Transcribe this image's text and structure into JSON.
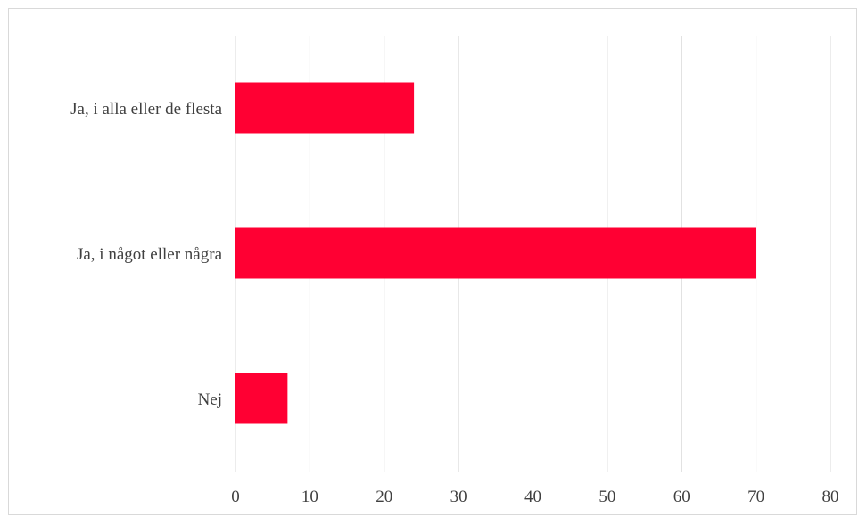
{
  "chart_data": {
    "type": "bar",
    "orientation": "horizontal",
    "categories": [
      "Ja, i alla eller de flesta",
      "Ja, i något eller några",
      "Nej"
    ],
    "values": [
      24,
      70,
      7
    ],
    "xlim": [
      0,
      80
    ],
    "xticks": [
      "0",
      "10",
      "20",
      "30",
      "40",
      "50",
      "60",
      "70",
      "80"
    ],
    "title": "",
    "xlabel": "",
    "ylabel": "",
    "grid": "vertical",
    "legend": "none",
    "bar_color": "#ff0033",
    "grid_color": "#d9d9d9"
  }
}
